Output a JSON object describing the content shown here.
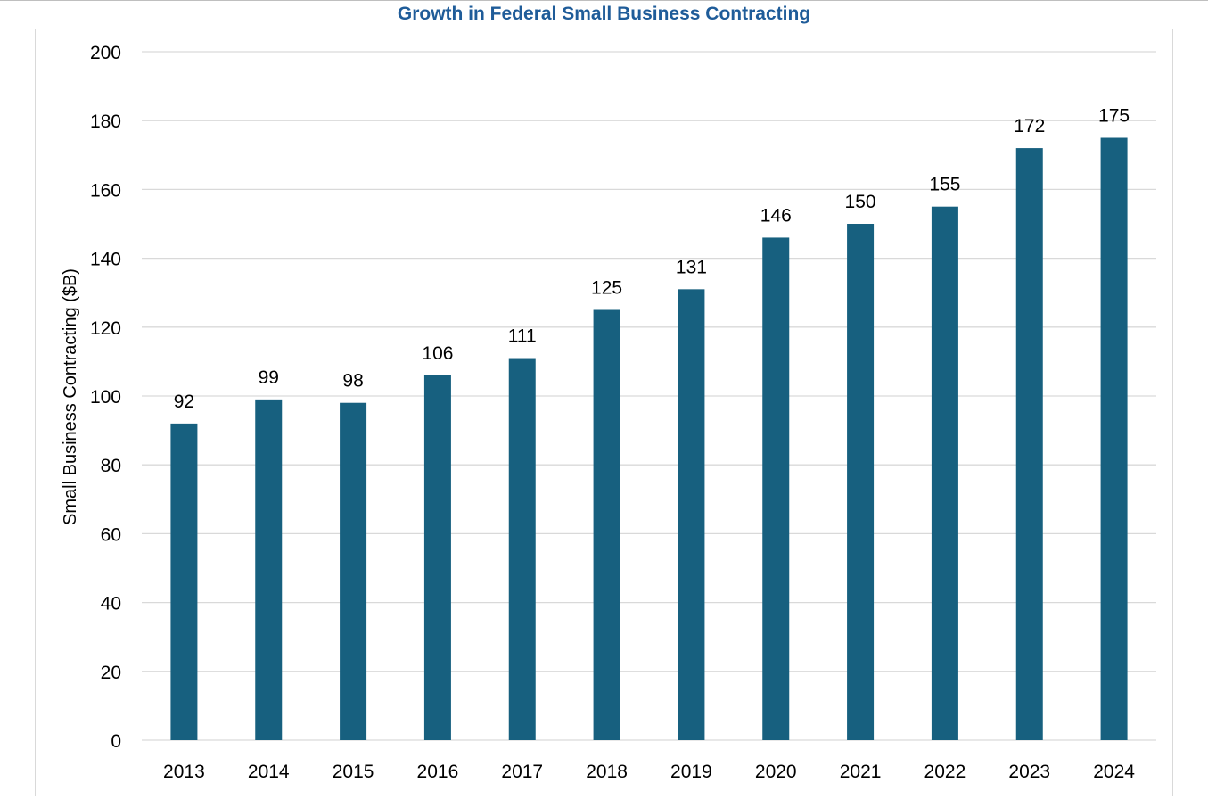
{
  "chart_data": {
    "type": "bar",
    "title": "Growth in Federal Small Business Contracting",
    "xlabel": "",
    "ylabel": "Small Business Contracting ($B)",
    "categories": [
      "2013",
      "2014",
      "2015",
      "2016",
      "2017",
      "2018",
      "2019",
      "2020",
      "2021",
      "2022",
      "2023",
      "2024"
    ],
    "values": [
      92,
      99,
      98,
      106,
      111,
      125,
      131,
      146,
      150,
      155,
      172,
      175
    ],
    "data_labels": [
      "92",
      "99",
      "98",
      "106",
      "111",
      "125",
      "131",
      "146",
      "150",
      "155",
      "172",
      "175"
    ],
    "ylim": [
      0,
      200
    ],
    "yticks": [
      0,
      20,
      40,
      60,
      80,
      100,
      120,
      140,
      160,
      180,
      200
    ],
    "grid": true,
    "legend": "none",
    "bar_color": "#17607f"
  }
}
